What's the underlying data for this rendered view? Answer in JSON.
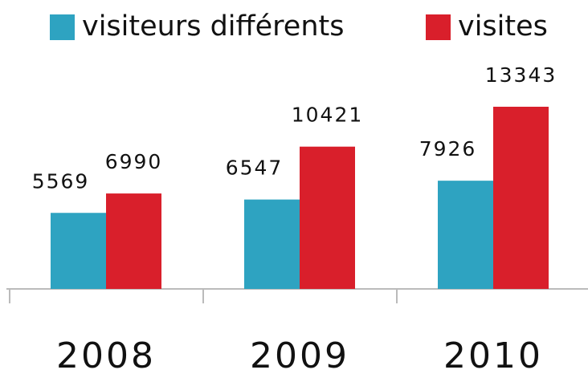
{
  "chart_data": {
    "type": "bar",
    "categories": [
      "2008",
      "2009",
      "2010"
    ],
    "series": [
      {
        "name": "visiteurs différents",
        "color": "#2ea3c1",
        "values": [
          5569,
          6547,
          7926
        ]
      },
      {
        "name": "visites",
        "color": "#d91f2b",
        "values": [
          6990,
          10421,
          13343
        ]
      }
    ]
  }
}
